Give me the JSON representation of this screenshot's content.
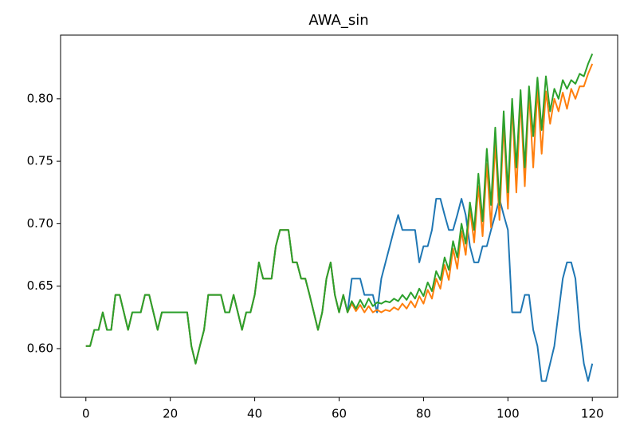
{
  "chart_data": {
    "type": "line",
    "title": "AWA_sin",
    "x": [
      0,
      1,
      2,
      3,
      4,
      5,
      6,
      7,
      8,
      9,
      10,
      11,
      12,
      13,
      14,
      15,
      16,
      17,
      18,
      19,
      20,
      21,
      22,
      23,
      24,
      25,
      26,
      27,
      28,
      29,
      30,
      31,
      32,
      33,
      34,
      35,
      36,
      37,
      38,
      39,
      40,
      41,
      42,
      43,
      44,
      45,
      46,
      47,
      48,
      49,
      50,
      51,
      52,
      53,
      54,
      55,
      56,
      57,
      58,
      59,
      60,
      61,
      62,
      63,
      64,
      65,
      66,
      67,
      68,
      69,
      70,
      71,
      72,
      73,
      74,
      75,
      76,
      77,
      78,
      79,
      80,
      81,
      82,
      83,
      84,
      85,
      86,
      87,
      88,
      89,
      90,
      91,
      92,
      93,
      94,
      95,
      96,
      97,
      98,
      99,
      100,
      101,
      102,
      103,
      104,
      105,
      106,
      107,
      108,
      109,
      110,
      111,
      112,
      113,
      114,
      115,
      116,
      117,
      118,
      119,
      120
    ],
    "series": [
      {
        "color": "#1f77b4",
        "values": [
          0.602,
          0.602,
          0.615,
          0.615,
          0.629,
          0.615,
          0.615,
          0.643,
          0.643,
          0.629,
          0.615,
          0.629,
          0.629,
          0.629,
          0.643,
          0.643,
          0.629,
          0.615,
          0.629,
          0.629,
          0.629,
          0.629,
          0.629,
          0.629,
          0.629,
          0.602,
          0.588,
          0.602,
          0.615,
          0.643,
          0.643,
          0.643,
          0.643,
          0.629,
          0.629,
          0.643,
          0.629,
          0.615,
          0.629,
          0.629,
          0.643,
          0.669,
          0.656,
          0.656,
          0.656,
          0.682,
          0.695,
          0.695,
          0.695,
          0.669,
          0.669,
          0.656,
          0.656,
          0.643,
          0.629,
          0.615,
          0.629,
          0.656,
          0.669,
          0.643,
          0.629,
          0.643,
          0.629,
          0.656,
          0.656,
          0.656,
          0.643,
          0.643,
          0.643,
          0.629,
          0.656,
          0.669,
          0.682,
          0.695,
          0.707,
          0.695,
          0.695,
          0.695,
          0.695,
          0.669,
          0.682,
          0.682,
          0.695,
          0.72,
          0.72,
          0.707,
          0.695,
          0.695,
          0.707,
          0.72,
          0.707,
          0.682,
          0.669,
          0.669,
          0.682,
          0.682,
          0.695,
          0.707,
          0.72,
          0.707,
          0.695,
          0.629,
          0.629,
          0.629,
          0.643,
          0.643,
          0.615,
          0.602,
          0.574,
          0.574,
          0.588,
          0.602,
          0.629,
          0.656,
          0.669,
          0.669,
          0.656,
          0.615,
          0.588,
          0.574,
          0.588
        ]
      },
      {
        "color": "#ff7f0e",
        "values": [
          0.602,
          0.602,
          0.615,
          0.615,
          0.629,
          0.615,
          0.615,
          0.643,
          0.643,
          0.629,
          0.615,
          0.629,
          0.629,
          0.629,
          0.643,
          0.643,
          0.629,
          0.615,
          0.629,
          0.629,
          0.629,
          0.629,
          0.629,
          0.629,
          0.629,
          0.602,
          0.588,
          0.602,
          0.615,
          0.643,
          0.643,
          0.643,
          0.643,
          0.629,
          0.629,
          0.643,
          0.629,
          0.615,
          0.629,
          0.629,
          0.643,
          0.669,
          0.656,
          0.656,
          0.656,
          0.682,
          0.695,
          0.695,
          0.695,
          0.669,
          0.669,
          0.656,
          0.656,
          0.643,
          0.629,
          0.615,
          0.629,
          0.656,
          0.669,
          0.643,
          0.629,
          0.643,
          0.629,
          0.636,
          0.63,
          0.635,
          0.629,
          0.634,
          0.629,
          0.631,
          0.629,
          0.631,
          0.63,
          0.633,
          0.631,
          0.636,
          0.632,
          0.638,
          0.633,
          0.642,
          0.636,
          0.647,
          0.64,
          0.656,
          0.648,
          0.667,
          0.655,
          0.68,
          0.664,
          0.694,
          0.675,
          0.712,
          0.685,
          0.73,
          0.69,
          0.748,
          0.697,
          0.765,
          0.703,
          0.78,
          0.712,
          0.795,
          0.725,
          0.8,
          0.73,
          0.805,
          0.745,
          0.808,
          0.756,
          0.806,
          0.78,
          0.8,
          0.79,
          0.805,
          0.792,
          0.808,
          0.8,
          0.81,
          0.81,
          0.82,
          0.828
        ]
      },
      {
        "color": "#2ca02c",
        "values": [
          0.602,
          0.602,
          0.615,
          0.615,
          0.629,
          0.615,
          0.615,
          0.643,
          0.643,
          0.629,
          0.615,
          0.629,
          0.629,
          0.629,
          0.643,
          0.643,
          0.629,
          0.615,
          0.629,
          0.629,
          0.629,
          0.629,
          0.629,
          0.629,
          0.629,
          0.602,
          0.588,
          0.602,
          0.615,
          0.643,
          0.643,
          0.643,
          0.643,
          0.629,
          0.629,
          0.643,
          0.629,
          0.615,
          0.629,
          0.629,
          0.643,
          0.669,
          0.656,
          0.656,
          0.656,
          0.682,
          0.695,
          0.695,
          0.695,
          0.669,
          0.669,
          0.656,
          0.656,
          0.643,
          0.629,
          0.615,
          0.629,
          0.656,
          0.669,
          0.643,
          0.629,
          0.643,
          0.629,
          0.638,
          0.632,
          0.639,
          0.633,
          0.64,
          0.634,
          0.637,
          0.636,
          0.638,
          0.637,
          0.64,
          0.638,
          0.643,
          0.639,
          0.645,
          0.64,
          0.648,
          0.642,
          0.653,
          0.646,
          0.662,
          0.655,
          0.673,
          0.663,
          0.686,
          0.673,
          0.7,
          0.684,
          0.717,
          0.695,
          0.74,
          0.702,
          0.76,
          0.715,
          0.777,
          0.715,
          0.79,
          0.725,
          0.8,
          0.745,
          0.807,
          0.745,
          0.81,
          0.77,
          0.817,
          0.775,
          0.818,
          0.79,
          0.808,
          0.8,
          0.815,
          0.808,
          0.815,
          0.812,
          0.82,
          0.818,
          0.828,
          0.836
        ]
      }
    ],
    "xlim": [
      -6,
      126
    ],
    "xticks": [
      0,
      20,
      40,
      60,
      80,
      100,
      120
    ],
    "ylim": [
      0.561,
      0.851
    ],
    "yticks": [
      {
        "value": 0.6,
        "label": "0.60"
      },
      0.65,
      {
        "value": 0.7,
        "label": "0.70"
      },
      0.75,
      {
        "value": 0.8,
        "label": "0.80"
      }
    ],
    "grid": false
  }
}
